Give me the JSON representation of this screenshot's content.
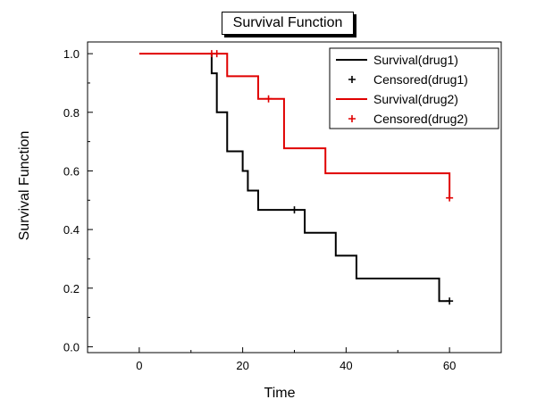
{
  "chart_data": {
    "type": "line",
    "title": "Survival Function",
    "xlabel": "Time",
    "ylabel": "Survival Function",
    "xlim": [
      -10,
      70
    ],
    "ylim": [
      -0.02,
      1.04
    ],
    "xticks": [
      0,
      20,
      40,
      60
    ],
    "xtick_labels": [
      "0",
      "20",
      "40",
      "60"
    ],
    "yticks": [
      0.0,
      0.2,
      0.4,
      0.6,
      0.8,
      1.0
    ],
    "ytick_labels": [
      "0.0",
      "0.2",
      "0.4",
      "0.6",
      "0.8",
      "1.0"
    ],
    "grid": false,
    "legend_position": "top-right",
    "series": [
      {
        "name": "Survival(drug1)",
        "kind": "step",
        "color": "#000000",
        "x": [
          14,
          15,
          17,
          20,
          21,
          23,
          32,
          38,
          42,
          58,
          60
        ],
        "y": [
          0.933,
          0.8,
          0.667,
          0.6,
          0.533,
          0.467,
          0.389,
          0.311,
          0.233,
          0.156,
          0.156
        ],
        "start": [
          14,
          1.0
        ]
      },
      {
        "name": "Censored(drug1)",
        "kind": "marker",
        "color": "#000000",
        "x": [
          30,
          60
        ],
        "y": [
          0.467,
          0.156
        ]
      },
      {
        "name": "Survival(drug2)",
        "kind": "step",
        "color": "#e00000",
        "x": [
          17,
          23,
          28,
          36,
          60
        ],
        "y": [
          0.923,
          0.846,
          0.677,
          0.592,
          0.592
        ],
        "start": [
          0,
          1.0
        ]
      },
      {
        "name": "Censored(drug2)",
        "kind": "marker",
        "color": "#e00000",
        "x": [
          14,
          15,
          25,
          60
        ],
        "y": [
          1.0,
          1.0,
          0.846,
          0.508
        ]
      }
    ],
    "drug2_final_drop": {
      "x": 60,
      "from": 0.592,
      "to": 0.508
    }
  }
}
